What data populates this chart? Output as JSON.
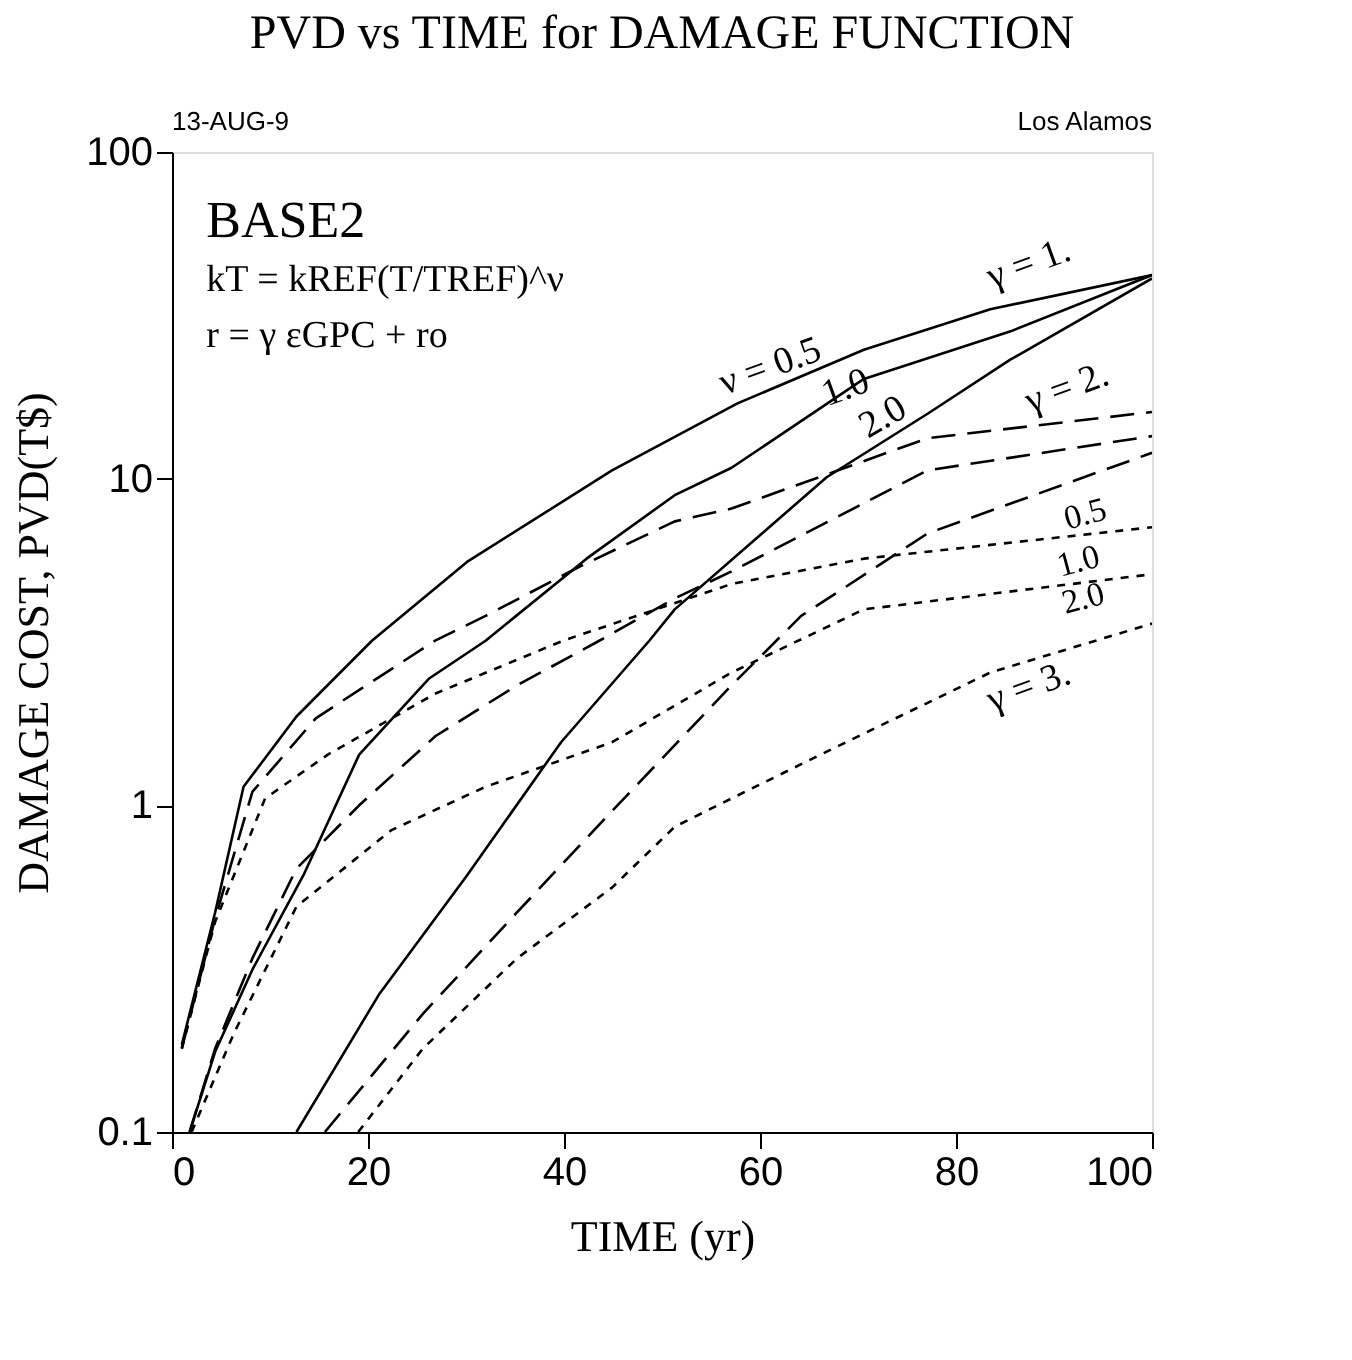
{
  "chart_data": {
    "type": "line",
    "title": "PVD vs TIME for DAMAGE FUNCTION",
    "xlabel": "TIME (yr)",
    "ylabel": "DAMAGE COST, PVD(T$)",
    "xlim": [
      0,
      100
    ],
    "xticks": [
      0,
      20,
      40,
      60,
      80,
      100
    ],
    "ylim": [
      0.1,
      100
    ],
    "yticks": [
      0.1,
      1,
      10,
      100
    ],
    "log": "y",
    "grid": false,
    "series": [
      {
        "color": "#000000",
        "line_style": "solid",
        "x": [
          1,
          4.4,
          7.3,
          12.7,
          20.4,
          30.1,
          44.9,
          57.7,
          70.6,
          83.5,
          100
        ],
        "values": [
          0.185,
          0.47,
          1.14,
          1.87,
          3.19,
          5.56,
          10.6,
          17,
          24.8,
          33,
          42
        ]
      },
      {
        "color": "#000000",
        "line_style": "solid",
        "x": [
          1.8,
          4.4,
          8.2,
          13.4,
          19.1,
          26.2,
          32,
          42.3,
          51.3,
          57.1,
          70.6,
          85.5,
          100
        ],
        "values": [
          0.1,
          0.176,
          0.314,
          0.61,
          1.43,
          2.44,
          3.19,
          5.69,
          8.9,
          10.8,
          20.2,
          28.2,
          42
        ]
      },
      {
        "color": "#000000",
        "line_style": "solid",
        "x": [
          12.7,
          21.1,
          30.1,
          39.7,
          48.7,
          51.3,
          66.8,
          77.1,
          85.5,
          100
        ],
        "values": [
          0.1,
          0.263,
          0.61,
          1.56,
          3.19,
          3.98,
          10.1,
          15.8,
          23.1,
          41
        ]
      },
      {
        "color": "#000000",
        "line_style": "dashed",
        "x": [
          1,
          4.4,
          8.2,
          14.7,
          26.9,
          32,
          41.7,
          51.3,
          57.1,
          77.1,
          100
        ],
        "values": [
          0.18,
          0.45,
          1.1,
          1.85,
          3.2,
          3.8,
          5.4,
          7.4,
          8.1,
          13.3,
          16
        ]
      },
      {
        "color": "#000000",
        "line_style": "dashed",
        "x": [
          1.8,
          4.4,
          8.2,
          12.7,
          19.1,
          26.9,
          35.2,
          43.6,
          51.3,
          57.1,
          77.1,
          100
        ],
        "values": [
          0.1,
          0.18,
          0.34,
          0.64,
          1,
          1.63,
          2.33,
          3.19,
          4.3,
          5.2,
          10.6,
          13.5
        ]
      },
      {
        "color": "#000000",
        "line_style": "dashed",
        "x": [
          15.6,
          25.6,
          35.2,
          44.9,
          57.1,
          64.2,
          77.1,
          100
        ],
        "values": [
          0.1,
          0.23,
          0.47,
          0.96,
          2.33,
          3.8,
          6.8,
          12
        ]
      },
      {
        "color": "#000000",
        "line_style": "dotted",
        "x": [
          1,
          4.4,
          9.5,
          15.9,
          26.9,
          40,
          57.1,
          70.6,
          100
        ],
        "values": [
          0.18,
          0.44,
          1.05,
          1.43,
          2.2,
          3.2,
          4.76,
          5.69,
          7.1
        ]
      },
      {
        "color": "#000000",
        "line_style": "dotted",
        "x": [
          2,
          6.3,
          12.7,
          22.4,
          32,
          44.9,
          57.1,
          70.6,
          100
        ],
        "values": [
          0.1,
          0.2,
          0.49,
          0.84,
          1.14,
          1.56,
          2.55,
          3.98,
          5.1
        ]
      },
      {
        "color": "#000000",
        "line_style": "dotted",
        "x": [
          19,
          25.6,
          35.2,
          44.9,
          51.3,
          57.1,
          67.4,
          83.5,
          100
        ],
        "values": [
          0.1,
          0.18,
          0.34,
          0.56,
          0.86,
          1.05,
          1.49,
          2.55,
          3.6
        ]
      }
    ],
    "annotations": [
      "13-AUG-9",
      "Los Alamos",
      "BASE2",
      "kT = kREF(T/TREF)^ν",
      "r = γ εGPC + ro",
      "ν = 0.5",
      "1.0",
      "2.0",
      "γ = 1.",
      "γ = 2.",
      "0.5",
      "1.0",
      "2.0",
      "γ = 3."
    ]
  }
}
